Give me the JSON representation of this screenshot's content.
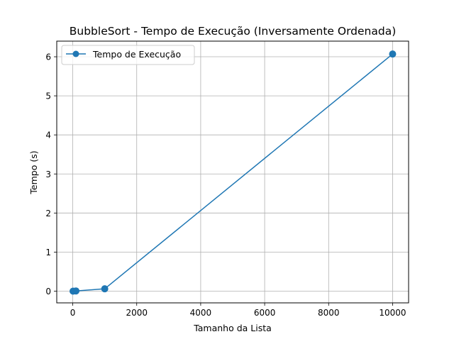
{
  "chart_data": {
    "type": "line",
    "title": "BubbleSort - Tempo de Execução (Inversamente Ordenada)",
    "xlabel": "Tamanho da Lista",
    "ylabel": "Tempo (s)",
    "xlim": [
      -500,
      10500
    ],
    "ylim": [
      -0.3,
      6.4
    ],
    "xticks": [
      0,
      2000,
      4000,
      6000,
      8000,
      10000
    ],
    "xtick_labels": [
      "0",
      "2000",
      "4000",
      "6000",
      "8000",
      "10000"
    ],
    "yticks": [
      0,
      1,
      2,
      3,
      4,
      5,
      6
    ],
    "ytick_labels": [
      "0",
      "1",
      "2",
      "3",
      "4",
      "5",
      "6"
    ],
    "grid": true,
    "legend": "top-left",
    "series": [
      {
        "name": "Tempo de Execução",
        "color": "#1f77b4",
        "marker": "circle",
        "x": [
          10,
          100,
          1000,
          10000
        ],
        "y": [
          0.0,
          0.005,
          0.06,
          6.07
        ]
      }
    ]
  }
}
